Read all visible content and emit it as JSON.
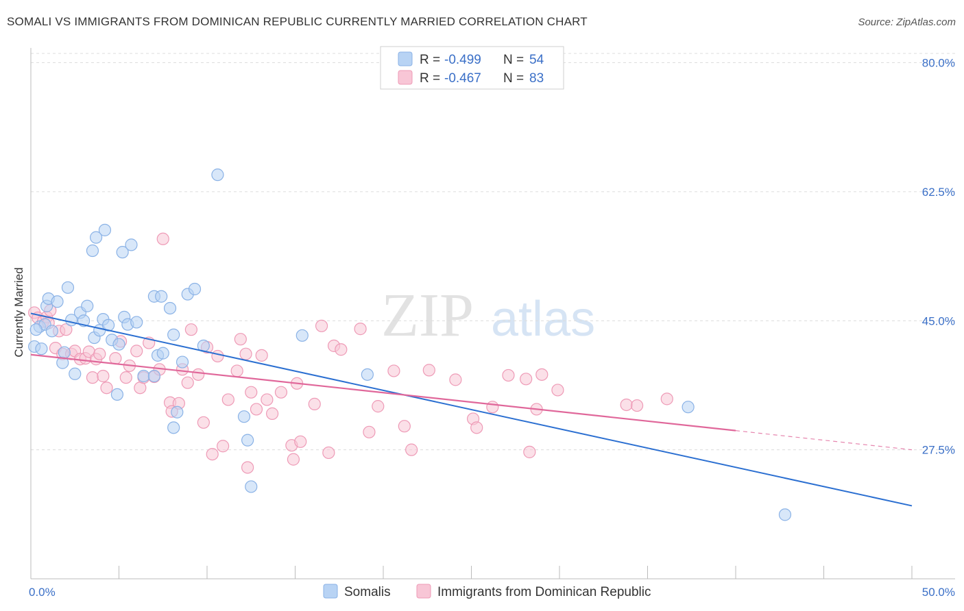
{
  "title": "SOMALI VS IMMIGRANTS FROM DOMINICAN REPUBLIC CURRENTLY MARRIED CORRELATION CHART",
  "source": "Source: ZipAtlas.com",
  "watermark": {
    "zip": "ZIP",
    "atlas": "atlas"
  },
  "colors": {
    "blue_fill": "#b8d3f4",
    "blue_stroke": "#8ab2e6",
    "blue_line": "#2b6fd1",
    "pink_fill": "#f8c6d6",
    "pink_stroke": "#ee9ab6",
    "pink_line": "#e0679a",
    "grid": "#dcdcdc",
    "tick_text": "#3a6fc7"
  },
  "legend": {
    "rows": [
      {
        "r_label": "R =",
        "r_value": "-0.499",
        "n_label": "N =",
        "n_value": "54"
      },
      {
        "r_label": "R =",
        "r_value": "-0.467",
        "n_label": "N =",
        "n_value": "83"
      }
    ]
  },
  "chart_data": {
    "type": "scatter",
    "ylabel": "Currently Married",
    "xlim": [
      0,
      50
    ],
    "ylim": [
      10,
      82
    ],
    "x_tick_labels": [
      "0.0%",
      "50.0%"
    ],
    "y_ticks": [
      27.5,
      45.0,
      62.5,
      80.0
    ],
    "y_tick_labels": [
      "27.5%",
      "45.0%",
      "62.5%",
      "80.0%"
    ],
    "grid": true,
    "legend_placement": "top-center",
    "series": [
      {
        "name": "Somalis",
        "color": "#b8d3f4",
        "trend": {
          "x": [
            0,
            50
          ],
          "y": [
            46.0,
            19.9
          ]
        },
        "points": [
          [
            0.2,
            41.5
          ],
          [
            0.5,
            44.2
          ],
          [
            0.6,
            41.2
          ],
          [
            0.8,
            44.5
          ],
          [
            0.9,
            47.0
          ],
          [
            1.0,
            48.0
          ],
          [
            1.2,
            43.6
          ],
          [
            1.5,
            47.6
          ],
          [
            1.8,
            39.3
          ],
          [
            1.9,
            40.7
          ],
          [
            2.1,
            49.5
          ],
          [
            2.3,
            45.1
          ],
          [
            2.5,
            37.8
          ],
          [
            2.8,
            46.1
          ],
          [
            3.0,
            45.0
          ],
          [
            3.2,
            47.0
          ],
          [
            3.5,
            54.5
          ],
          [
            3.6,
            42.7
          ],
          [
            3.7,
            56.3
          ],
          [
            3.9,
            43.7
          ],
          [
            4.1,
            45.2
          ],
          [
            4.2,
            57.3
          ],
          [
            4.4,
            44.4
          ],
          [
            4.6,
            42.4
          ],
          [
            4.9,
            35.0
          ],
          [
            5.0,
            41.8
          ],
          [
            5.2,
            54.3
          ],
          [
            5.3,
            45.5
          ],
          [
            5.5,
            44.5
          ],
          [
            5.7,
            55.3
          ],
          [
            6.0,
            44.8
          ],
          [
            6.4,
            37.5
          ],
          [
            7.0,
            48.3
          ],
          [
            7.2,
            40.3
          ],
          [
            7.4,
            48.3
          ],
          [
            7.5,
            40.6
          ],
          [
            7.9,
            46.7
          ],
          [
            8.1,
            43.1
          ],
          [
            8.3,
            32.6
          ],
          [
            8.6,
            39.4
          ],
          [
            8.9,
            48.6
          ],
          [
            9.3,
            49.3
          ],
          [
            9.8,
            41.6
          ],
          [
            8.1,
            30.5
          ],
          [
            10.6,
            64.8
          ],
          [
            12.1,
            32.0
          ],
          [
            12.3,
            28.8
          ],
          [
            12.5,
            22.5
          ],
          [
            15.4,
            43.0
          ],
          [
            19.1,
            37.7
          ],
          [
            37.3,
            33.3
          ],
          [
            42.8,
            18.7
          ],
          [
            0.3,
            43.8
          ],
          [
            7.0,
            37.5
          ]
        ]
      },
      {
        "name": "Immigrants from Dominican Republic",
        "color": "#f8c6d6",
        "trend": {
          "x": [
            0,
            40
          ],
          "y": [
            40.4,
            30.1
          ]
        },
        "trend_dashed": {
          "x": [
            40,
            50
          ],
          "y": [
            30.1,
            27.5
          ]
        },
        "points": [
          [
            0.2,
            46.1
          ],
          [
            0.4,
            45.4
          ],
          [
            0.7,
            44.9
          ],
          [
            0.9,
            45.5
          ],
          [
            1.0,
            44.7
          ],
          [
            1.1,
            46.4
          ],
          [
            1.4,
            41.3
          ],
          [
            1.6,
            43.6
          ],
          [
            1.8,
            40.5
          ],
          [
            2.0,
            43.8
          ],
          [
            2.3,
            40.5
          ],
          [
            2.5,
            40.9
          ],
          [
            2.8,
            39.8
          ],
          [
            3.1,
            39.9
          ],
          [
            3.3,
            40.8
          ],
          [
            3.5,
            37.3
          ],
          [
            3.7,
            39.8
          ],
          [
            3.9,
            40.5
          ],
          [
            4.1,
            37.5
          ],
          [
            4.3,
            35.9
          ],
          [
            4.8,
            39.9
          ],
          [
            5.1,
            42.2
          ],
          [
            5.4,
            37.3
          ],
          [
            5.6,
            38.9
          ],
          [
            6.0,
            40.9
          ],
          [
            6.2,
            35.9
          ],
          [
            6.4,
            37.3
          ],
          [
            6.7,
            42.0
          ],
          [
            7.0,
            37.4
          ],
          [
            7.3,
            38.4
          ],
          [
            7.5,
            56.1
          ],
          [
            7.9,
            33.9
          ],
          [
            8.0,
            32.7
          ],
          [
            8.4,
            33.8
          ],
          [
            8.6,
            38.4
          ],
          [
            8.9,
            36.6
          ],
          [
            9.1,
            43.8
          ],
          [
            9.5,
            37.7
          ],
          [
            9.8,
            31.2
          ],
          [
            10.0,
            41.4
          ],
          [
            10.3,
            26.9
          ],
          [
            10.6,
            40.2
          ],
          [
            10.9,
            28.0
          ],
          [
            11.2,
            34.3
          ],
          [
            11.7,
            38.2
          ],
          [
            11.9,
            42.5
          ],
          [
            12.2,
            40.5
          ],
          [
            12.3,
            25.1
          ],
          [
            12.5,
            35.3
          ],
          [
            12.8,
            33.0
          ],
          [
            13.1,
            40.3
          ],
          [
            13.4,
            34.3
          ],
          [
            13.7,
            32.4
          ],
          [
            14.2,
            35.3
          ],
          [
            14.8,
            28.1
          ],
          [
            14.9,
            26.2
          ],
          [
            15.1,
            36.5
          ],
          [
            15.3,
            28.6
          ],
          [
            16.1,
            33.7
          ],
          [
            16.5,
            44.3
          ],
          [
            16.9,
            27.1
          ],
          [
            17.2,
            41.6
          ],
          [
            17.6,
            41.1
          ],
          [
            18.7,
            43.9
          ],
          [
            19.2,
            29.9
          ],
          [
            19.7,
            33.4
          ],
          [
            20.6,
            38.2
          ],
          [
            21.2,
            30.7
          ],
          [
            21.6,
            27.5
          ],
          [
            22.6,
            38.3
          ],
          [
            24.1,
            37.0
          ],
          [
            25.1,
            31.7
          ],
          [
            25.3,
            30.5
          ],
          [
            26.2,
            33.3
          ],
          [
            27.1,
            37.6
          ],
          [
            28.1,
            37.1
          ],
          [
            28.3,
            27.2
          ],
          [
            28.7,
            33.0
          ],
          [
            29.0,
            37.7
          ],
          [
            29.9,
            35.6
          ],
          [
            33.8,
            33.6
          ],
          [
            34.4,
            33.5
          ],
          [
            36.1,
            34.4
          ]
        ]
      }
    ]
  },
  "bottom_legend": [
    {
      "label": "Somalis"
    },
    {
      "label": "Immigrants from Dominican Republic"
    }
  ]
}
